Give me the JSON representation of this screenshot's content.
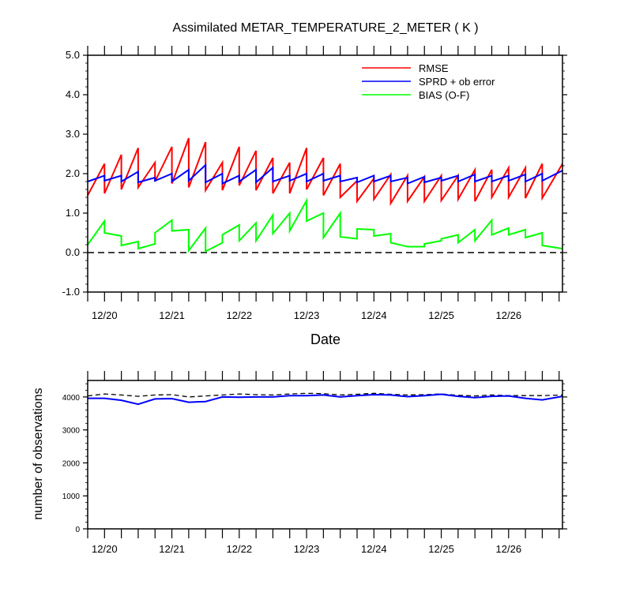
{
  "chart_data": [
    {
      "type": "line",
      "title": "Assimilated METAR_TEMPERATURE_2_METER ( K )",
      "xlabel": "Date",
      "ylabel": "",
      "ylim": [
        -1.0,
        5.0
      ],
      "yticks": [
        -1.0,
        0.0,
        1.0,
        2.0,
        3.0,
        4.0,
        5.0
      ],
      "ytick_labels": [
        "-1.0",
        "0.0",
        "1.0",
        "2.0",
        "3.0",
        "4.0",
        "5.0"
      ],
      "xlim": [
        19.75,
        26.8
      ],
      "xticks": [
        20,
        21,
        22,
        23,
        24,
        25,
        26
      ],
      "xtick_labels": [
        "12/20",
        "12/21",
        "12/22",
        "12/23",
        "12/24",
        "12/25",
        "12/26"
      ],
      "legend_position": "top-right",
      "reference_line": {
        "y": 0.0,
        "style": "dashed",
        "color": "#000000"
      },
      "series": [
        {
          "name": "RMSE",
          "color": "#ff0000",
          "points": [
            [
              19.75,
              1.45
            ],
            [
              20.0,
              2.25
            ],
            [
              20.0,
              1.5
            ],
            [
              20.25,
              2.48
            ],
            [
              20.25,
              1.6
            ],
            [
              20.5,
              2.65
            ],
            [
              20.5,
              1.65
            ],
            [
              20.75,
              2.28
            ],
            [
              20.75,
              1.8
            ],
            [
              21.0,
              2.68
            ],
            [
              21.0,
              1.75
            ],
            [
              21.25,
              2.9
            ],
            [
              21.25,
              1.65
            ],
            [
              21.5,
              2.8
            ],
            [
              21.5,
              1.58
            ],
            [
              21.75,
              2.28
            ],
            [
              21.75,
              1.58
            ],
            [
              22.0,
              2.68
            ],
            [
              22.0,
              1.7
            ],
            [
              22.25,
              2.58
            ],
            [
              22.25,
              1.58
            ],
            [
              22.5,
              2.4
            ],
            [
              22.5,
              1.5
            ],
            [
              22.75,
              2.28
            ],
            [
              22.75,
              1.5
            ],
            [
              23.0,
              2.65
            ],
            [
              23.0,
              1.6
            ],
            [
              23.25,
              2.4
            ],
            [
              23.25,
              1.45
            ],
            [
              23.5,
              2.25
            ],
            [
              23.5,
              1.4
            ],
            [
              23.75,
              1.82
            ],
            [
              23.75,
              1.3
            ],
            [
              24.0,
              1.88
            ],
            [
              24.0,
              1.35
            ],
            [
              24.25,
              1.98
            ],
            [
              24.25,
              1.25
            ],
            [
              24.5,
              1.95
            ],
            [
              24.5,
              1.3
            ],
            [
              24.75,
              1.92
            ],
            [
              24.75,
              1.3
            ],
            [
              25.0,
              1.95
            ],
            [
              25.0,
              1.32
            ],
            [
              25.25,
              1.95
            ],
            [
              25.25,
              1.35
            ],
            [
              25.5,
              2.1
            ],
            [
              25.5,
              1.3
            ],
            [
              25.75,
              2.1
            ],
            [
              25.75,
              1.4
            ],
            [
              26.0,
              2.15
            ],
            [
              26.0,
              1.4
            ],
            [
              26.25,
              2.15
            ],
            [
              26.25,
              1.38
            ],
            [
              26.5,
              2.25
            ],
            [
              26.5,
              1.38
            ],
            [
              26.8,
              2.25
            ]
          ]
        },
        {
          "name": "SPRD + ob error",
          "color": "#0000ff",
          "points": [
            [
              19.75,
              1.8
            ],
            [
              20.0,
              1.95
            ],
            [
              20.0,
              1.82
            ],
            [
              20.25,
              1.95
            ],
            [
              20.25,
              1.8
            ],
            [
              20.5,
              2.05
            ],
            [
              20.5,
              1.78
            ],
            [
              20.75,
              1.9
            ],
            [
              20.75,
              1.82
            ],
            [
              21.0,
              2.0
            ],
            [
              21.0,
              1.8
            ],
            [
              21.25,
              2.1
            ],
            [
              21.25,
              1.82
            ],
            [
              21.5,
              2.22
            ],
            [
              21.5,
              1.78
            ],
            [
              21.75,
              2.0
            ],
            [
              21.75,
              1.75
            ],
            [
              22.0,
              1.95
            ],
            [
              22.0,
              1.8
            ],
            [
              22.25,
              2.1
            ],
            [
              22.25,
              1.78
            ],
            [
              22.5,
              2.15
            ],
            [
              22.5,
              1.8
            ],
            [
              22.75,
              1.95
            ],
            [
              22.75,
              1.82
            ],
            [
              23.0,
              2.0
            ],
            [
              23.0,
              1.8
            ],
            [
              23.25,
              2.0
            ],
            [
              23.25,
              1.82
            ],
            [
              23.5,
              1.95
            ],
            [
              23.5,
              1.8
            ],
            [
              23.75,
              1.9
            ],
            [
              23.75,
              1.78
            ],
            [
              24.0,
              1.95
            ],
            [
              24.0,
              1.8
            ],
            [
              24.25,
              1.95
            ],
            [
              24.25,
              1.8
            ],
            [
              24.5,
              1.9
            ],
            [
              24.5,
              1.75
            ],
            [
              24.75,
              1.92
            ],
            [
              24.75,
              1.78
            ],
            [
              25.0,
              1.9
            ],
            [
              25.0,
              1.82
            ],
            [
              25.25,
              1.95
            ],
            [
              25.25,
              1.8
            ],
            [
              25.5,
              1.98
            ],
            [
              25.5,
              1.8
            ],
            [
              25.75,
              1.95
            ],
            [
              25.75,
              1.8
            ],
            [
              26.0,
              1.95
            ],
            [
              26.0,
              1.82
            ],
            [
              26.25,
              1.98
            ],
            [
              26.25,
              1.8
            ],
            [
              26.5,
              2.0
            ],
            [
              26.5,
              1.82
            ],
            [
              26.8,
              2.08
            ]
          ]
        },
        {
          "name": "BIAS (O-F)",
          "color": "#00ff00",
          "points": [
            [
              19.75,
              0.2
            ],
            [
              20.0,
              0.8
            ],
            [
              20.0,
              0.5
            ],
            [
              20.25,
              0.42
            ],
            [
              20.25,
              0.18
            ],
            [
              20.5,
              0.28
            ],
            [
              20.5,
              0.1
            ],
            [
              20.75,
              0.22
            ],
            [
              20.75,
              0.5
            ],
            [
              21.0,
              0.82
            ],
            [
              21.0,
              0.55
            ],
            [
              21.25,
              0.58
            ],
            [
              21.25,
              0.05
            ],
            [
              21.5,
              0.62
            ],
            [
              21.5,
              0.03
            ],
            [
              21.75,
              0.25
            ],
            [
              21.75,
              0.45
            ],
            [
              22.0,
              0.7
            ],
            [
              22.0,
              0.3
            ],
            [
              22.25,
              0.75
            ],
            [
              22.25,
              0.3
            ],
            [
              22.5,
              0.95
            ],
            [
              22.5,
              0.48
            ],
            [
              22.75,
              1.0
            ],
            [
              22.75,
              0.55
            ],
            [
              23.0,
              1.32
            ],
            [
              23.0,
              0.8
            ],
            [
              23.25,
              1.0
            ],
            [
              23.25,
              0.38
            ],
            [
              23.5,
              1.0
            ],
            [
              23.5,
              0.4
            ],
            [
              23.75,
              0.35
            ],
            [
              23.75,
              0.6
            ],
            [
              24.0,
              0.58
            ],
            [
              24.0,
              0.42
            ],
            [
              24.25,
              0.48
            ],
            [
              24.25,
              0.25
            ],
            [
              24.5,
              0.15
            ],
            [
              24.75,
              0.15
            ],
            [
              24.75,
              0.22
            ],
            [
              25.0,
              0.3
            ],
            [
              25.0,
              0.35
            ],
            [
              25.25,
              0.45
            ],
            [
              25.25,
              0.25
            ],
            [
              25.5,
              0.58
            ],
            [
              25.5,
              0.3
            ],
            [
              25.75,
              0.82
            ],
            [
              25.75,
              0.45
            ],
            [
              26.0,
              0.62
            ],
            [
              26.0,
              0.45
            ],
            [
              26.25,
              0.58
            ],
            [
              26.25,
              0.38
            ],
            [
              26.5,
              0.5
            ],
            [
              26.5,
              0.18
            ],
            [
              26.8,
              0.1
            ]
          ]
        }
      ]
    },
    {
      "type": "line",
      "title": "",
      "xlabel": "",
      "ylabel": "number of observations",
      "ylim": [
        0,
        4500
      ],
      "yticks": [
        0,
        1000,
        2000,
        3000,
        4000
      ],
      "ytick_labels": [
        "0",
        "1000",
        "2000",
        "3000",
        "4000"
      ],
      "xlim": [
        19.75,
        26.8
      ],
      "xticks": [
        20,
        21,
        22,
        23,
        24,
        25,
        26
      ],
      "xtick_labels": [
        "12/20",
        "12/21",
        "12/22",
        "12/23",
        "12/24",
        "12/25",
        "12/26"
      ],
      "series": [
        {
          "name": "",
          "style": "dashed",
          "color": "#000000",
          "points": [
            [
              19.75,
              4030
            ],
            [
              20.0,
              4090
            ],
            [
              20.25,
              4060
            ],
            [
              20.5,
              4020
            ],
            [
              20.75,
              4060
            ],
            [
              21.0,
              4070
            ],
            [
              21.25,
              4000
            ],
            [
              21.5,
              4030
            ],
            [
              21.75,
              4060
            ],
            [
              22.0,
              4090
            ],
            [
              22.25,
              4070
            ],
            [
              22.5,
              4060
            ],
            [
              22.75,
              4090
            ],
            [
              23.0,
              4110
            ],
            [
              23.25,
              4100
            ],
            [
              23.5,
              4060
            ],
            [
              23.75,
              4080
            ],
            [
              24.0,
              4110
            ],
            [
              24.25,
              4080
            ],
            [
              24.5,
              4060
            ],
            [
              24.75,
              4070
            ],
            [
              25.0,
              4090
            ],
            [
              25.25,
              4050
            ],
            [
              25.5,
              4030
            ],
            [
              25.75,
              4060
            ],
            [
              26.0,
              4040
            ],
            [
              26.25,
              4040
            ],
            [
              26.5,
              4040
            ],
            [
              26.8,
              4060
            ]
          ]
        },
        {
          "name": "",
          "style": "solid",
          "color": "#0000ff",
          "points": [
            [
              19.75,
              3960
            ],
            [
              20.0,
              3960
            ],
            [
              20.25,
              3900
            ],
            [
              20.5,
              3780
            ],
            [
              20.75,
              3940
            ],
            [
              21.0,
              3950
            ],
            [
              21.25,
              3840
            ],
            [
              21.5,
              3860
            ],
            [
              21.75,
              4000
            ],
            [
              22.0,
              3990
            ],
            [
              22.25,
              4000
            ],
            [
              22.5,
              4000
            ],
            [
              22.75,
              4040
            ],
            [
              23.0,
              4040
            ],
            [
              23.25,
              4060
            ],
            [
              23.5,
              4000
            ],
            [
              23.75,
              4040
            ],
            [
              24.0,
              4070
            ],
            [
              24.25,
              4060
            ],
            [
              24.5,
              4010
            ],
            [
              24.75,
              4040
            ],
            [
              25.0,
              4080
            ],
            [
              25.25,
              4020
            ],
            [
              25.5,
              3980
            ],
            [
              25.75,
              4020
            ],
            [
              26.0,
              4030
            ],
            [
              26.25,
              3960
            ],
            [
              26.5,
              3910
            ],
            [
              26.8,
              4020
            ]
          ]
        }
      ]
    }
  ]
}
